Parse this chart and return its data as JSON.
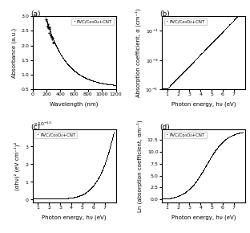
{
  "panel_a": {
    "label": "PVC/Co₃O₄+CNT",
    "xlabel": "Wavelength (nm)",
    "ylabel": "Absorbance (a.u.)",
    "x_range": [
      0,
      1200
    ],
    "y_range": [
      0.5,
      3.0
    ],
    "xticks": [
      0,
      200,
      400,
      600,
      800,
      1000,
      1200
    ],
    "yticks": [
      0.5,
      1.0,
      1.5,
      2.0,
      2.5,
      3.0
    ],
    "ytick_labels": [
      "0.5",
      "1.0",
      "1.5",
      "2.0",
      "2.5",
      "3.0"
    ]
  },
  "panel_b": {
    "label": "PVC/Co₃O₄+CNT",
    "xlabel": "Photon energy, hν (eV)",
    "ylabel": "Absorption coefficient, α (cm⁻¹)",
    "x_range": [
      0.5,
      8
    ],
    "xticks": [
      1,
      2,
      3,
      4,
      5,
      6,
      7
    ],
    "ylog": true
  },
  "panel_c": {
    "label": "PVC/Co₃O₄+CNT",
    "xlabel": "Photon energy, hν (eV)",
    "ylabel": "(αhν)² (eV cm⁻¹)²",
    "x_range": [
      0.5,
      8
    ],
    "xticks": [
      1,
      2,
      3,
      4,
      5,
      6,
      7
    ]
  },
  "panel_d": {
    "label": "PVC/Co₃O₄+CNT",
    "xlabel": "Photon energy, hν (eV)",
    "ylabel": "Ln (absorption coefficient, αm⁻¹)",
    "x_range": [
      0.5,
      8
    ],
    "xticks": [
      1,
      2,
      3,
      4,
      5,
      6,
      7
    ]
  },
  "dot_color": "black",
  "dot_size": 1.2,
  "label_fontsize": 5.0,
  "tick_fontsize": 4.5,
  "legend_fontsize": 4.0
}
